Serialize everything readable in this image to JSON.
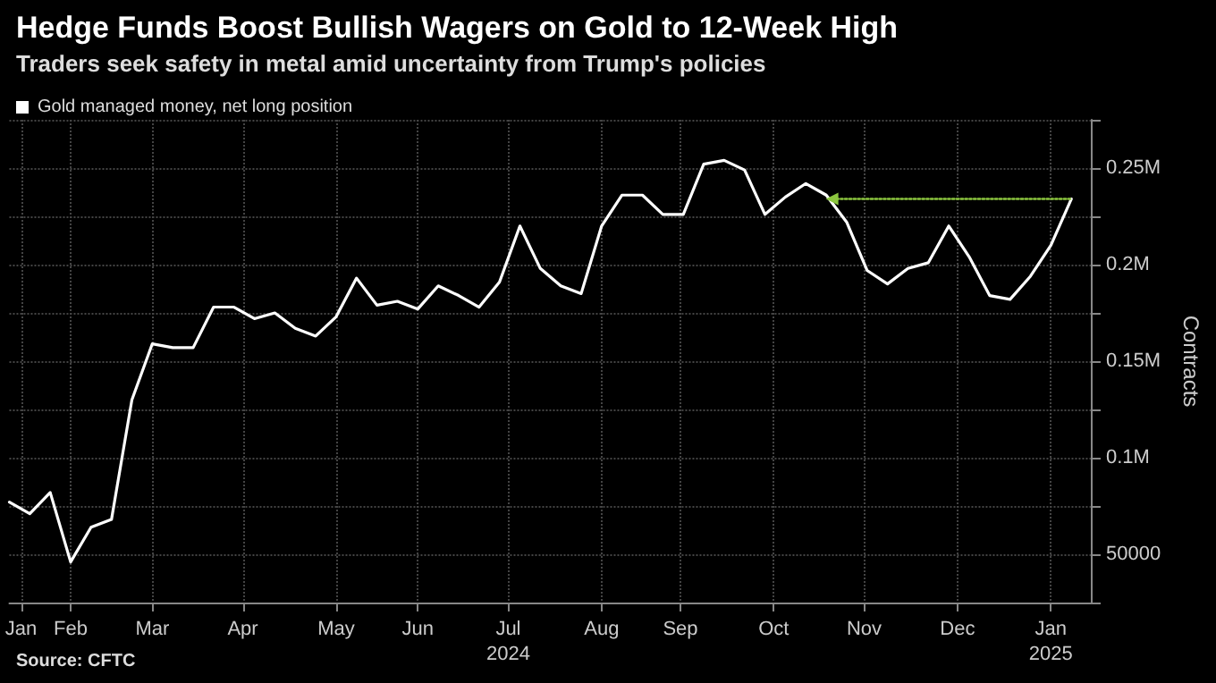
{
  "chart_data": {
    "type": "line",
    "title": "Hedge Funds Boost Bullish Wagers on Gold to 12-Week High",
    "subtitle": "Traders seek safety in metal amid uncertainty from Trump's policies",
    "ylabel": "Contracts",
    "annotations": [
      "Source: CFTC"
    ],
    "x": [
      "2024-01-23",
      "2024-01-30",
      "2024-02-06",
      "2024-02-13",
      "2024-02-20",
      "2024-02-27",
      "2024-03-05",
      "2024-03-12",
      "2024-03-19",
      "2024-03-26",
      "2024-04-02",
      "2024-04-09",
      "2024-04-16",
      "2024-04-23",
      "2024-04-30",
      "2024-05-07",
      "2024-05-14",
      "2024-05-21",
      "2024-05-28",
      "2024-06-04",
      "2024-06-11",
      "2024-06-18",
      "2024-06-25",
      "2024-07-02",
      "2024-07-09",
      "2024-07-16",
      "2024-07-23",
      "2024-07-30",
      "2024-08-06",
      "2024-08-13",
      "2024-08-20",
      "2024-08-27",
      "2024-09-03",
      "2024-09-10",
      "2024-09-17",
      "2024-09-24",
      "2024-10-01",
      "2024-10-08",
      "2024-10-15",
      "2024-10-22",
      "2024-10-29",
      "2024-11-05",
      "2024-11-12",
      "2024-11-19",
      "2024-11-26",
      "2024-12-03",
      "2024-12-10",
      "2024-12-17",
      "2024-12-24",
      "2024-12-31",
      "2025-01-07",
      "2025-01-14",
      "2025-01-21"
    ],
    "series": [
      {
        "name": "Gold managed money, net long position",
        "color": "#ffffff",
        "values": [
          77000,
          71000,
          82000,
          46000,
          64000,
          68000,
          130000,
          159000,
          157000,
          157000,
          178000,
          178000,
          172000,
          175000,
          167000,
          163000,
          173000,
          193000,
          179000,
          181000,
          177000,
          189000,
          184000,
          178000,
          191000,
          220000,
          198000,
          189000,
          185000,
          220000,
          236000,
          236000,
          226000,
          226000,
          252000,
          254000,
          249000,
          226000,
          235000,
          242000,
          236000,
          222000,
          197000,
          190000,
          198000,
          201000,
          220000,
          204000,
          184000,
          182000,
          194000,
          210000,
          234000
        ]
      },
      {
        "type": "line",
        "color": "#8cc63f",
        "line_style": "dotted",
        "marker": "triangle",
        "x": [
          "2024-10-31",
          "2025-01-21"
        ],
        "values": [
          234000,
          234000
        ]
      }
    ],
    "xlim": [
      "2024-01-23",
      "2025-01-28"
    ],
    "xticks": [
      {
        "value": "2024-01-27",
        "label": "Jan"
      },
      {
        "value": "2024-02-13",
        "label": "Feb"
      },
      {
        "value": "2024-03-12",
        "label": "Mar"
      },
      {
        "value": "2024-04-12",
        "label": "Apr"
      },
      {
        "value": "2024-05-14",
        "label": "May"
      },
      {
        "value": "2024-06-11",
        "label": "Jun"
      },
      {
        "value": "2024-07-12",
        "label": "Jul\n2024"
      },
      {
        "value": "2024-08-13",
        "label": "Aug"
      },
      {
        "value": "2024-09-09",
        "label": "Sep"
      },
      {
        "value": "2024-10-11",
        "label": "Oct"
      },
      {
        "value": "2024-11-11",
        "label": "Nov"
      },
      {
        "value": "2024-12-13",
        "label": "Dec"
      },
      {
        "value": "2025-01-14",
        "label": "Jan\n2025"
      }
    ],
    "ylim": [
      25000,
      275000
    ],
    "yticks": [
      {
        "value": 25000,
        "label": null
      },
      50000,
      {
        "value": 75000,
        "label": null
      },
      {
        "value": 100000,
        "label": "0.1M"
      },
      {
        "value": 125000,
        "label": null
      },
      {
        "value": 150000,
        "label": "0.15M"
      },
      {
        "value": 175000,
        "label": null
      },
      {
        "value": 200000,
        "label": "0.2M"
      },
      {
        "value": 225000,
        "label": null
      },
      {
        "value": 250000,
        "label": "0.25M"
      },
      {
        "value": 275000,
        "label": null
      }
    ],
    "grid": true,
    "legend": "top left",
    "marker": "none",
    "line_style": "solid"
  }
}
